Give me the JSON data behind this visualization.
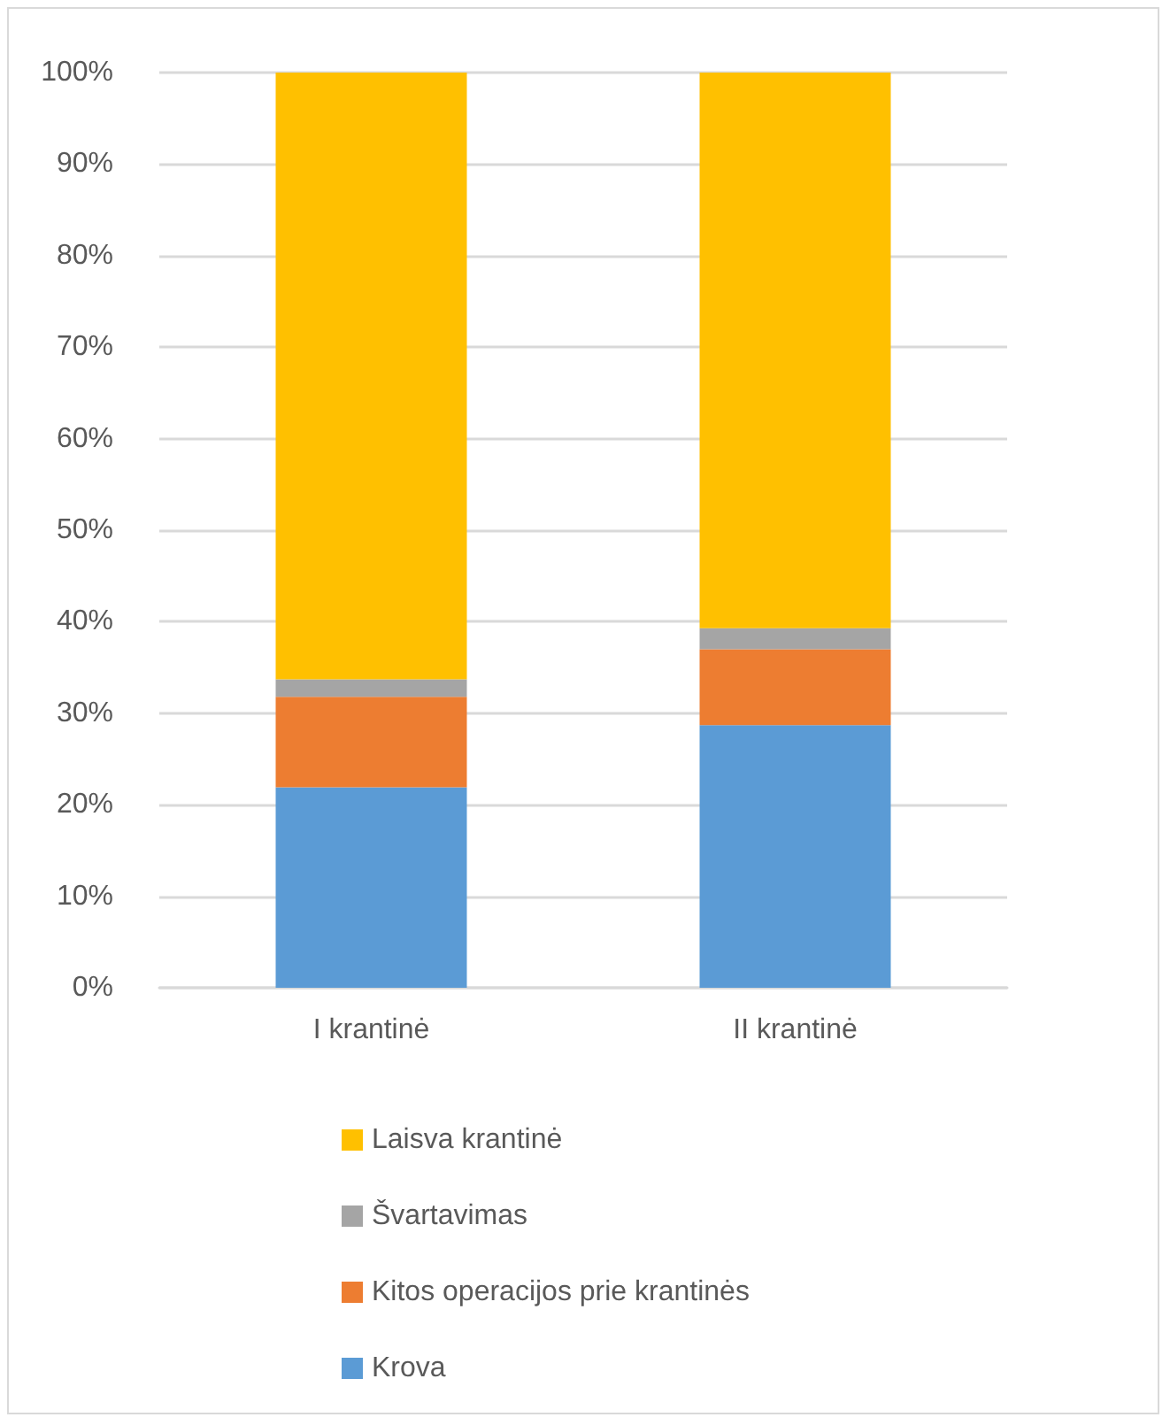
{
  "chart_data": {
    "type": "bar",
    "stacked": true,
    "categories": [
      "I krantinė",
      "II krantinė"
    ],
    "series": [
      {
        "name": "Krova",
        "color": "#5b9bd5",
        "values": [
          21.9,
          28.7
        ]
      },
      {
        "name": "Kitos operacijos prie krantinės",
        "color": "#ed7d31",
        "values": [
          9.9,
          8.3
        ]
      },
      {
        "name": "Švartavimas",
        "color": "#a5a5a5",
        "values": [
          1.9,
          2.3
        ]
      },
      {
        "name": "Laisva krantinė",
        "color": "#ffc000",
        "values": [
          66.3,
          60.7
        ]
      }
    ],
    "ylim": [
      0,
      100
    ],
    "yticks": [
      {
        "value": 0,
        "label": "0%"
      },
      {
        "value": 10,
        "label": "10%"
      },
      {
        "value": 20,
        "label": "20%"
      },
      {
        "value": 30,
        "label": "30%"
      },
      {
        "value": 40,
        "label": "40%"
      },
      {
        "value": 50,
        "label": "50%"
      },
      {
        "value": 60,
        "label": "60%"
      },
      {
        "value": 70,
        "label": "70%"
      },
      {
        "value": 80,
        "label": "80%"
      },
      {
        "value": 90,
        "label": "90%"
      },
      {
        "value": 100,
        "label": "100%"
      }
    ],
    "grid": "y",
    "legend": "bottom"
  }
}
